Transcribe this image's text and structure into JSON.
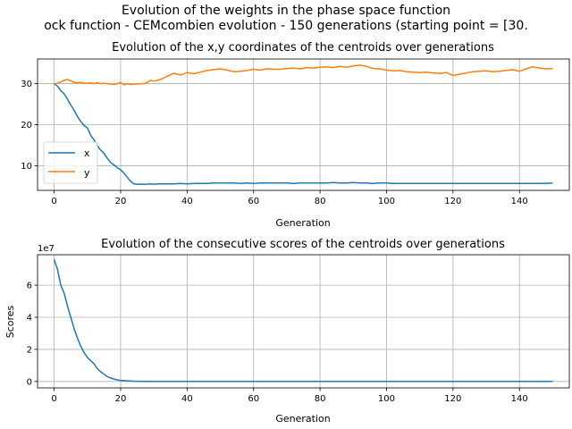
{
  "figure": {
    "suptitle_line1": "Evolution of the weights in the phase space  function",
    "suptitle_line2": "ock function - CEMcombien evolution - 150 generations (starting point = [30."
  },
  "chart_data": [
    {
      "type": "line",
      "title": "Evolution of the x,y coordinates of the centroids over generations",
      "xlabel": "Generation",
      "ylabel": "",
      "xlim": [
        -5,
        155
      ],
      "ylim": [
        4,
        36
      ],
      "xticks": [
        0,
        20,
        40,
        60,
        80,
        100,
        120,
        140
      ],
      "yticks": [
        10,
        20,
        30
      ],
      "grid": true,
      "legend": "center-left",
      "x": [
        0,
        1,
        2,
        3,
        4,
        5,
        6,
        7,
        8,
        9,
        10,
        11,
        12,
        13,
        14,
        15,
        16,
        17,
        18,
        19,
        20,
        21,
        22,
        23,
        24,
        25,
        26,
        27,
        28,
        29,
        30,
        32,
        34,
        36,
        38,
        40,
        42,
        44,
        46,
        48,
        50,
        52,
        54,
        56,
        58,
        60,
        62,
        64,
        66,
        68,
        70,
        72,
        74,
        76,
        78,
        80,
        82,
        84,
        86,
        88,
        90,
        92,
        94,
        96,
        98,
        100,
        102,
        104,
        106,
        108,
        110,
        112,
        114,
        116,
        118,
        120,
        122,
        124,
        126,
        128,
        130,
        132,
        134,
        136,
        138,
        140,
        142,
        144,
        146,
        148,
        150
      ],
      "series": [
        {
          "name": "x",
          "color": "#1f77b4",
          "values": [
            30,
            29.4,
            28.3,
            27.5,
            26.2,
            24.8,
            23.5,
            22,
            20.8,
            19.8,
            19.2,
            17.4,
            16.3,
            14.9,
            13.8,
            13,
            11.8,
            10.8,
            10.2,
            9.5,
            9,
            8.2,
            7.2,
            6.2,
            5.6,
            5.5,
            5.5,
            5.5,
            5.5,
            5.6,
            5.5,
            5.6,
            5.6,
            5.6,
            5.7,
            5.6,
            5.7,
            5.7,
            5.7,
            5.8,
            5.8,
            5.8,
            5.8,
            5.7,
            5.8,
            5.7,
            5.8,
            5.8,
            5.8,
            5.8,
            5.8,
            5.7,
            5.8,
            5.8,
            5.8,
            5.8,
            5.8,
            5.9,
            5.8,
            5.8,
            5.9,
            5.8,
            5.8,
            5.7,
            5.8,
            5.8,
            5.7,
            5.7,
            5.7,
            5.7,
            5.7,
            5.7,
            5.7,
            5.7,
            5.7,
            5.7,
            5.7,
            5.7,
            5.7,
            5.7,
            5.7,
            5.7,
            5.7,
            5.7,
            5.7,
            5.7,
            5.7,
            5.7,
            5.7,
            5.7,
            5.8
          ]
        },
        {
          "name": "y",
          "color": "#ff7f0e",
          "values": [
            30,
            30.1,
            30.4,
            30.8,
            31,
            30.7,
            30.3,
            30.2,
            30.3,
            30.1,
            30.1,
            30.2,
            30,
            30.2,
            30,
            30.1,
            30,
            29.9,
            29.8,
            30,
            30.3,
            29.7,
            30,
            29.8,
            29.9,
            29.9,
            30,
            30,
            30.3,
            30.8,
            30.6,
            31,
            31.8,
            32.5,
            32.1,
            32.7,
            32.4,
            32.8,
            33.2,
            33.4,
            33.6,
            33.3,
            32.9,
            33,
            33.2,
            33.5,
            33.3,
            33.6,
            33.5,
            33.5,
            33.7,
            33.8,
            33.6,
            33.9,
            33.8,
            34,
            34.1,
            33.9,
            34.2,
            34,
            34.3,
            34.5,
            34.2,
            33.7,
            33.6,
            33.3,
            33.1,
            33.2,
            32.9,
            32.8,
            32.7,
            32.8,
            32.6,
            32.5,
            32.7,
            32,
            32.3,
            32.6,
            32.9,
            33,
            33.1,
            32.9,
            33,
            33.2,
            33.4,
            33,
            33.6,
            34.1,
            33.8,
            33.6,
            33.7
          ]
        }
      ]
    },
    {
      "type": "line",
      "title": "Evolution of the consecutive scores of the centroids over generations",
      "xlabel": "Generation",
      "ylabel": "Scores",
      "offset_label": "1e7",
      "xlim": [
        -5,
        155
      ],
      "ylim": [
        -0.4,
        7.9
      ],
      "xticks": [
        0,
        20,
        40,
        60,
        80,
        100,
        120,
        140
      ],
      "yticks": [
        0,
        2,
        4,
        6
      ],
      "grid": true,
      "x": [
        0,
        1,
        2,
        3,
        4,
        5,
        6,
        7,
        8,
        9,
        10,
        11,
        12,
        13,
        14,
        15,
        16,
        17,
        18,
        19,
        20,
        22,
        24,
        26,
        28,
        30,
        40,
        50,
        60,
        70,
        80,
        90,
        100,
        110,
        120,
        130,
        140,
        150
      ],
      "series": [
        {
          "name": "",
          "color": "#1f77b4",
          "values": [
            7.6,
            7,
            6,
            5.5,
            4.7,
            4,
            3.3,
            2.7,
            2.2,
            1.8,
            1.5,
            1.3,
            1.1,
            0.8,
            0.6,
            0.45,
            0.3,
            0.22,
            0.15,
            0.1,
            0.07,
            0.04,
            0.02,
            0.01,
            0.005,
            0,
            0,
            0,
            0,
            0,
            0,
            0,
            0,
            0,
            0,
            0,
            0,
            0
          ]
        }
      ]
    }
  ]
}
